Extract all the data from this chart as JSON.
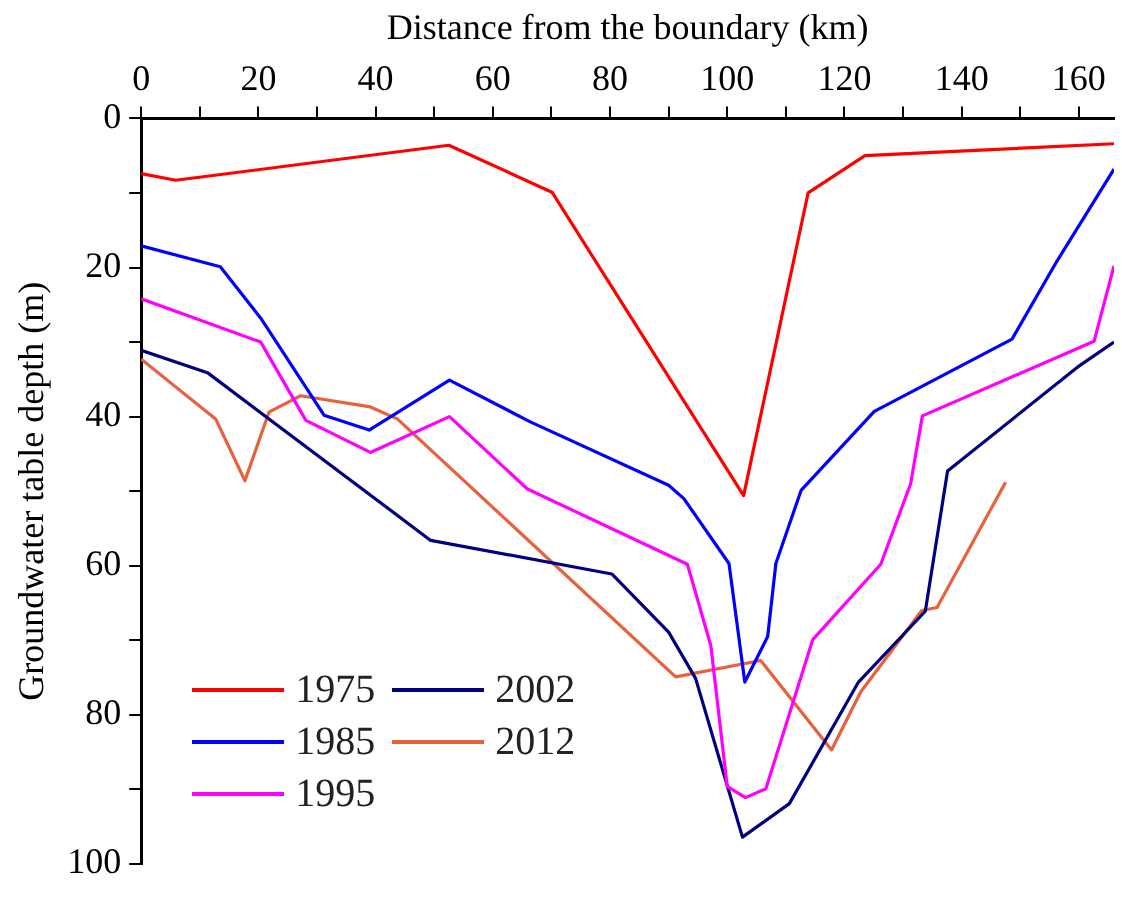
{
  "chart_data": {
    "type": "line",
    "xlabel": "Distance from the boundary (km)",
    "ylabel": "Groundwater table depth (m)",
    "xlim": [
      0,
      166
    ],
    "xticks": [
      0,
      {
        "value": 10,
        "label": null
      },
      20,
      {
        "value": 30,
        "label": null
      },
      40,
      {
        "value": 50,
        "label": null
      },
      60,
      {
        "value": 70,
        "label": null
      },
      80,
      {
        "value": 90,
        "label": null
      },
      100,
      {
        "value": 110,
        "label": null
      },
      120,
      {
        "value": 130,
        "label": null
      },
      140,
      {
        "value": 150,
        "label": null
      },
      160
    ],
    "ylim": [
      100,
      0
    ],
    "yticks": [
      0,
      {
        "value": 10,
        "label": null
      },
      20,
      {
        "value": 30,
        "label": null
      },
      40,
      {
        "value": 50,
        "label": null
      },
      60,
      {
        "value": 70,
        "label": null
      },
      80,
      {
        "value": 90,
        "label": null
      },
      100
    ],
    "grid": false,
    "legend": "bottom left",
    "marker": "none",
    "line_style": "solid",
    "series": [
      {
        "name": "1975",
        "color": "#ff0000",
        "x": [
          0,
          5.9,
          52.5,
          70.1,
          102.8,
          113.8,
          123.5,
          166
        ],
        "values": [
          7.4,
          8.3,
          3.6,
          9.9,
          50.6,
          10.0,
          5.0,
          3.4
        ]
      },
      {
        "name": "1985",
        "color": "#0000ff",
        "x": [
          0,
          13.5,
          20.4,
          31.2,
          38.9,
          52.6,
          66.4,
          90.0,
          92.6,
          100.3,
          103.0,
          106.9,
          108.3,
          112.6,
          125.1,
          148.6,
          156.3,
          166
        ],
        "values": [
          17.1,
          19.9,
          26.8,
          39.8,
          41.8,
          35.1,
          40.7,
          49.2,
          51.0,
          59.7,
          75.6,
          69.5,
          59.7,
          49.9,
          39.3,
          29.6,
          19.1,
          6.8
        ]
      },
      {
        "name": "1995",
        "color": "#ff00ff",
        "x": [
          0,
          20.4,
          28.1,
          39.1,
          52.6,
          65.9,
          93.2,
          97.2,
          100.0,
          103.1,
          106.6,
          114.6,
          126.2,
          131.3,
          133.3,
          162.6,
          166
        ],
        "values": [
          24.2,
          30.0,
          40.5,
          44.8,
          40.0,
          49.7,
          59.8,
          70.7,
          89.6,
          91.1,
          89.9,
          69.9,
          59.8,
          49.0,
          39.9,
          29.9,
          19.8
        ]
      },
      {
        "name": "2002",
        "color": "#000080",
        "x": [
          0,
          11.3,
          49.4,
          80.3,
          90.0,
          94.6,
          102.6,
          110.6,
          122.4,
          133.8,
          137.6,
          159.7,
          166
        ],
        "values": [
          31.1,
          34.1,
          56.6,
          61.1,
          68.9,
          75.1,
          96.4,
          91.9,
          75.6,
          66.1,
          47.3,
          33.4,
          30.0
        ]
      },
      {
        "name": "2012",
        "color": "#e8603c",
        "x": [
          0,
          12.7,
          17.7,
          21.8,
          27.2,
          39.1,
          43.7,
          91.2,
          105.7,
          117.8,
          122.8,
          133.2,
          135.8,
          147.5
        ],
        "values": [
          32.3,
          40.3,
          48.6,
          39.4,
          37.2,
          38.7,
          40.3,
          74.9,
          72.7,
          84.7,
          76.9,
          66.0,
          65.6,
          48.8
        ]
      }
    ]
  }
}
